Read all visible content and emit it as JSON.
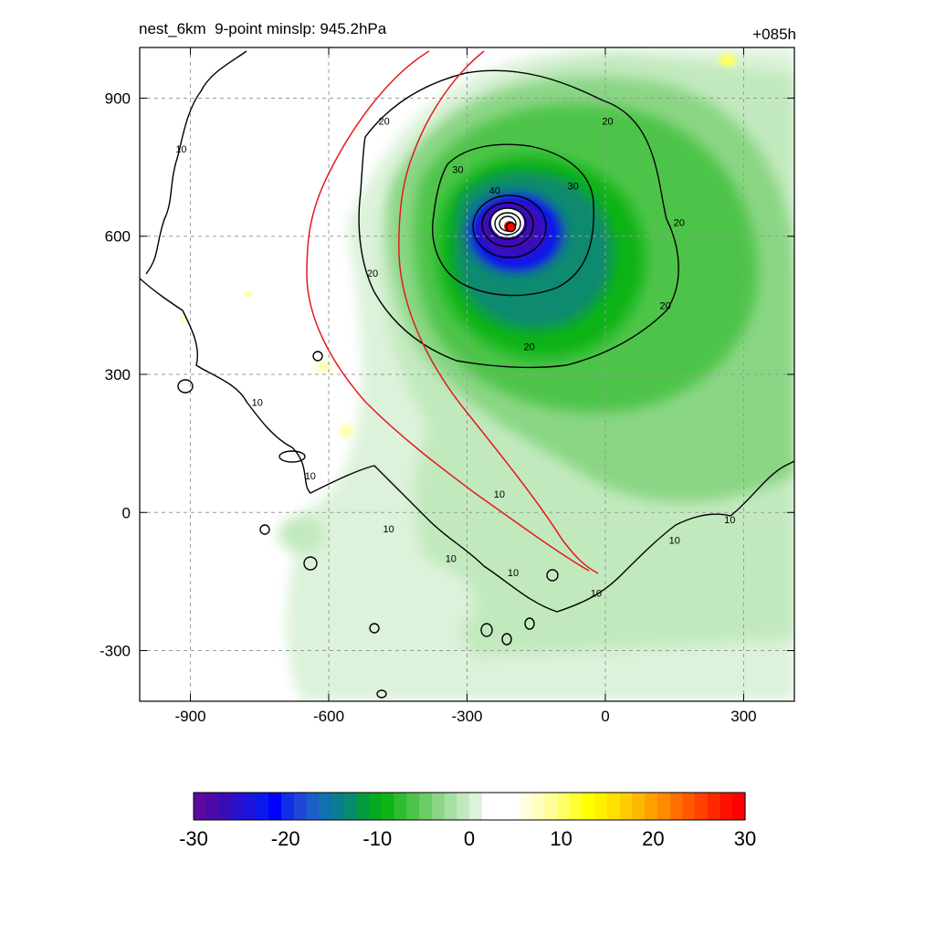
{
  "title_left": "nest_6km  9-point minslp: 945.2hPa",
  "title_right": "+085h",
  "chart_data": {
    "type": "heatmap",
    "x_ticks": [
      -900,
      -600,
      -300,
      0,
      300
    ],
    "y_ticks": [
      900,
      600,
      300,
      0,
      -300
    ],
    "x_range": [
      -1010,
      410
    ],
    "y_range": [
      -410,
      1010
    ],
    "grid": true,
    "storm_center": {
      "x": -205,
      "y": 620
    },
    "contour_labels": [
      {
        "text": "10",
        "x": -920,
        "y": 790
      },
      {
        "text": "10",
        "x": -755,
        "y": 240
      },
      {
        "text": "10",
        "x": -640,
        "y": 80
      },
      {
        "text": "10",
        "x": -470,
        "y": -35
      },
      {
        "text": "10",
        "x": -335,
        "y": -100
      },
      {
        "text": "10",
        "x": -200,
        "y": -130
      },
      {
        "text": "10",
        "x": -20,
        "y": -175
      },
      {
        "text": "10",
        "x": 150,
        "y": -60
      },
      {
        "text": "10",
        "x": 270,
        "y": -15
      },
      {
        "text": "10",
        "x": -230,
        "y": 40
      },
      {
        "text": "20",
        "x": -480,
        "y": 850
      },
      {
        "text": "20",
        "x": -505,
        "y": 520
      },
      {
        "text": "20",
        "x": -165,
        "y": 360
      },
      {
        "text": "20",
        "x": 130,
        "y": 450
      },
      {
        "text": "20",
        "x": 160,
        "y": 630
      },
      {
        "text": "20",
        "x": 5,
        "y": 850
      },
      {
        "text": "30",
        "x": -320,
        "y": 745
      },
      {
        "text": "30",
        "x": -70,
        "y": 710
      },
      {
        "text": "40",
        "x": -240,
        "y": 700
      }
    ],
    "colorbar": {
      "ticks": [
        "-30",
        "-20",
        "-10",
        "0",
        "10",
        "20",
        "30"
      ],
      "range": [
        -30,
        30
      ],
      "colors": [
        "#5a0a9c",
        "#4b0aa8",
        "#3a0cb8",
        "#2a10cc",
        "#1a14dc",
        "#0a18f0",
        "#0000ff",
        "#1030e8",
        "#2046d8",
        "#1a5ec8",
        "#1070b0",
        "#0a7d90",
        "#088a70",
        "#069a40",
        "#05aa20",
        "#10b418",
        "#30bc30",
        "#4ec44a",
        "#6ccd66",
        "#8ad684",
        "#a6dfa2",
        "#c2e9be",
        "#dcf2da",
        "#ffffff",
        "#ffffff",
        "#ffffff",
        "#ffffe0",
        "#ffffc0",
        "#ffff99",
        "#ffff66",
        "#ffff33",
        "#ffff00",
        "#fff000",
        "#ffe000",
        "#ffcc00",
        "#ffb800",
        "#ffa000",
        "#ff8c00",
        "#ff7000",
        "#ff5800",
        "#ff4000",
        "#ff2800",
        "#ff1000",
        "#ff0000"
      ]
    }
  }
}
